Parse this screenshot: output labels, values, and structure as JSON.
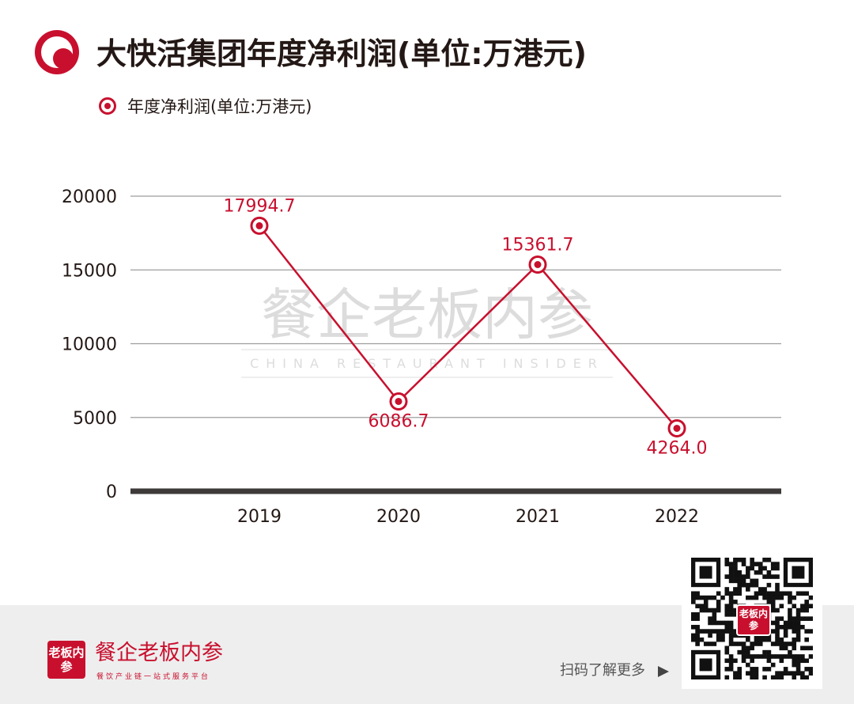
{
  "title": "大快活集团年度净利润(单位:万港元)",
  "colors": {
    "accent": "#c8102e",
    "axis": "#3d3a39",
    "grid": "#9e9e9e",
    "footer_bg": "#eeeeee",
    "watermark": "#dcdcdc"
  },
  "watermark": {
    "title": "餐企老板内参",
    "subtitle": "CHINA RESTAURANT INSIDER"
  },
  "chart_data": {
    "type": "line",
    "title": "大快活集团年度净利润(单位:万港元)",
    "categories": [
      "2019",
      "2020",
      "2021",
      "2022"
    ],
    "series": [
      {
        "name": "年度净利润(单位:万港元)",
        "values": [
          17994.7,
          6086.7,
          15361.7,
          4264.0
        ],
        "labels": [
          "17994.7",
          "6086.7",
          "15361.7",
          "4264.0"
        ],
        "color": "#c8102e"
      }
    ],
    "yticks": [
      "0",
      "5000",
      "10000",
      "15000",
      "20000"
    ],
    "ylim": [
      0,
      20000
    ],
    "grid": true,
    "legend": "top-left",
    "xlabel": "",
    "ylabel": ""
  },
  "footer": {
    "logo_text": "老板内参",
    "brand_name": "餐企老板内参",
    "tagline": "餐饮产业链一站式服务平台",
    "scan_text": "扫码了解更多",
    "arrow_icon": "triangle-right-icon",
    "qr_icon": "qr-code-icon",
    "qr_badge_text": "老板内参"
  }
}
